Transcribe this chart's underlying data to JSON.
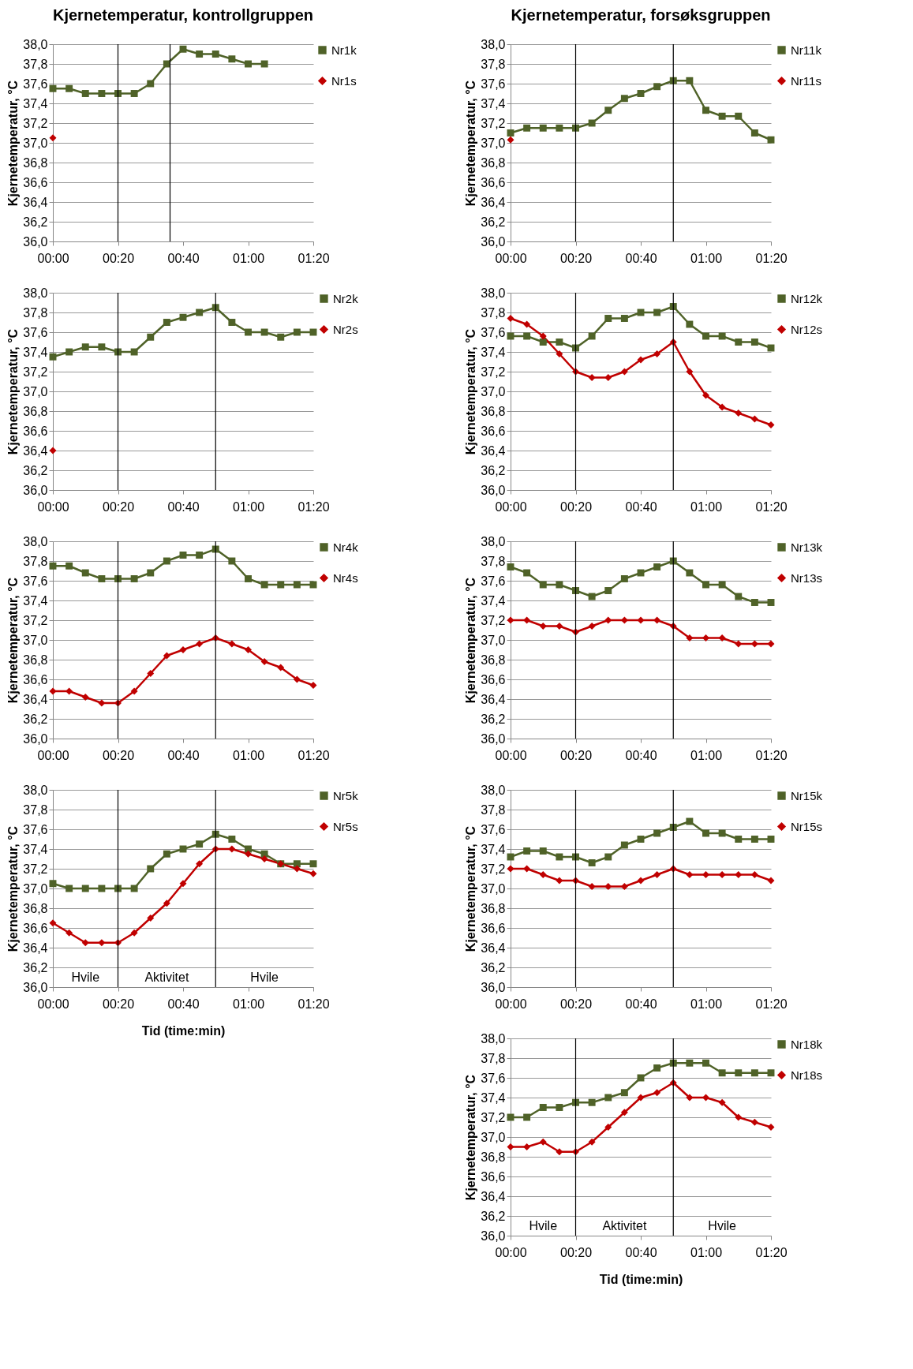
{
  "chart_data": [
    {
      "type": "line",
      "title": "Kjernetemperatur, kontrollgruppen",
      "ylabel": "Kjernetemperatur, °C",
      "legend": "right",
      "grid": "y",
      "xlim": [
        0,
        80
      ],
      "xticks": [
        {
          "value": 0,
          "label": "00:00"
        },
        {
          "value": 20,
          "label": "00:20"
        },
        {
          "value": 40,
          "label": "00:40"
        },
        {
          "value": 60,
          "label": "01:00"
        },
        {
          "value": 80,
          "label": "01:20"
        }
      ],
      "ylim": [
        36,
        38
      ],
      "yticks": [
        {
          "value": 36,
          "label": "36,0"
        },
        {
          "value": 36.2,
          "label": "36,2"
        },
        {
          "value": 36.4,
          "label": "36,4"
        },
        {
          "value": 36.6,
          "label": "36,6"
        },
        {
          "value": 36.8,
          "label": "36,8"
        },
        {
          "value": 37,
          "label": "37,0"
        },
        {
          "value": 37.2,
          "label": "37,2"
        },
        {
          "value": 37.4,
          "label": "37,4"
        },
        {
          "value": 37.6,
          "label": "37,6"
        },
        {
          "value": 37.8,
          "label": "37,8"
        },
        {
          "value": 38,
          "label": "38,0"
        }
      ],
      "ref_lines": [
        {
          "axis": "x",
          "value": 20,
          "color": "#000000"
        },
        {
          "axis": "x",
          "value": 36,
          "color": "#000000"
        }
      ],
      "series": [
        {
          "name": "Nr1k",
          "color": "#4f6228",
          "marker": "square",
          "x": [
            0,
            5,
            10,
            15,
            20,
            25,
            30,
            35,
            40,
            45,
            50,
            55,
            60,
            65
          ],
          "values": [
            37.55,
            37.55,
            37.5,
            37.5,
            37.5,
            37.5,
            37.6,
            37.8,
            37.95,
            37.9,
            37.9,
            37.85,
            37.8,
            37.8
          ]
        },
        {
          "name": "Nr1s",
          "color": "#c00000",
          "marker": "diamond",
          "x": [
            0
          ],
          "values": [
            37.05
          ]
        }
      ]
    },
    {
      "type": "line",
      "ylabel": "Kjernetemperatur, °C",
      "legend": "right",
      "grid": "y",
      "xlim": [
        0,
        80
      ],
      "xticks": [
        {
          "value": 0,
          "label": "00:00"
        },
        {
          "value": 20,
          "label": "00:20"
        },
        {
          "value": 40,
          "label": "00:40"
        },
        {
          "value": 60,
          "label": "01:00"
        },
        {
          "value": 80,
          "label": "01:20"
        }
      ],
      "ylim": [
        36,
        38
      ],
      "yticks": [
        {
          "value": 36,
          "label": "36,0"
        },
        {
          "value": 36.2,
          "label": "36,2"
        },
        {
          "value": 36.4,
          "label": "36,4"
        },
        {
          "value": 36.6,
          "label": "36,6"
        },
        {
          "value": 36.8,
          "label": "36,8"
        },
        {
          "value": 37,
          "label": "37,0"
        },
        {
          "value": 37.2,
          "label": "37,2"
        },
        {
          "value": 37.4,
          "label": "37,4"
        },
        {
          "value": 37.6,
          "label": "37,6"
        },
        {
          "value": 37.8,
          "label": "37,8"
        },
        {
          "value": 38,
          "label": "38,0"
        }
      ],
      "ref_lines": [
        {
          "axis": "x",
          "value": 20,
          "color": "#000000"
        },
        {
          "axis": "x",
          "value": 50,
          "color": "#000000"
        }
      ],
      "series": [
        {
          "name": "Nr2k",
          "color": "#4f6228",
          "marker": "square",
          "x": [
            0,
            5,
            10,
            15,
            20,
            25,
            30,
            35,
            40,
            45,
            50,
            55,
            60,
            65,
            70,
            75,
            80
          ],
          "values": [
            37.35,
            37.4,
            37.45,
            37.45,
            37.4,
            37.4,
            37.55,
            37.7,
            37.75,
            37.8,
            37.85,
            37.7,
            37.6,
            37.6,
            37.55,
            37.6,
            37.6
          ]
        },
        {
          "name": "Nr2s",
          "color": "#c00000",
          "marker": "diamond",
          "x": [
            0
          ],
          "values": [
            36.4
          ]
        }
      ]
    },
    {
      "type": "line",
      "ylabel": "Kjernetemperatur, °C",
      "legend": "right",
      "grid": "y",
      "xlim": [
        0,
        80
      ],
      "xticks": [
        {
          "value": 0,
          "label": "00:00"
        },
        {
          "value": 20,
          "label": "00:20"
        },
        {
          "value": 40,
          "label": "00:40"
        },
        {
          "value": 60,
          "label": "01:00"
        },
        {
          "value": 80,
          "label": "01:20"
        }
      ],
      "ylim": [
        36,
        38
      ],
      "yticks": [
        {
          "value": 36,
          "label": "36,0"
        },
        {
          "value": 36.2,
          "label": "36,2"
        },
        {
          "value": 36.4,
          "label": "36,4"
        },
        {
          "value": 36.6,
          "label": "36,6"
        },
        {
          "value": 36.8,
          "label": "36,8"
        },
        {
          "value": 37,
          "label": "37,0"
        },
        {
          "value": 37.2,
          "label": "37,2"
        },
        {
          "value": 37.4,
          "label": "37,4"
        },
        {
          "value": 37.6,
          "label": "37,6"
        },
        {
          "value": 37.8,
          "label": "37,8"
        },
        {
          "value": 38,
          "label": "38,0"
        }
      ],
      "ref_lines": [
        {
          "axis": "x",
          "value": 20,
          "color": "#000000"
        },
        {
          "axis": "x",
          "value": 50,
          "color": "#000000"
        }
      ],
      "series": [
        {
          "name": "Nr4k",
          "color": "#4f6228",
          "marker": "square",
          "x": [
            0,
            5,
            10,
            15,
            20,
            25,
            30,
            35,
            40,
            45,
            50,
            55,
            60,
            65,
            70,
            75,
            80
          ],
          "values": [
            37.75,
            37.75,
            37.68,
            37.62,
            37.62,
            37.62,
            37.68,
            37.8,
            37.86,
            37.86,
            37.92,
            37.8,
            37.62,
            37.56,
            37.56,
            37.56,
            37.56
          ]
        },
        {
          "name": "Nr4s",
          "color": "#c00000",
          "marker": "diamond",
          "x": [
            0,
            5,
            10,
            15,
            20,
            25,
            30,
            35,
            40,
            45,
            50,
            55,
            60,
            65,
            70,
            75,
            80
          ],
          "values": [
            36.48,
            36.48,
            36.42,
            36.36,
            36.36,
            36.48,
            36.66,
            36.84,
            36.9,
            36.96,
            37.02,
            36.96,
            36.9,
            36.78,
            36.72,
            36.6,
            36.54
          ]
        }
      ]
    },
    {
      "type": "line",
      "ylabel": "Kjernetemperatur, °C",
      "xlabel": "Tid (time:min)",
      "legend": "right",
      "grid": "y",
      "xlim": [
        0,
        80
      ],
      "xticks": [
        {
          "value": 0,
          "label": "00:00"
        },
        {
          "value": 20,
          "label": "00:20"
        },
        {
          "value": 40,
          "label": "00:40"
        },
        {
          "value": 60,
          "label": "01:00"
        },
        {
          "value": 80,
          "label": "01:20"
        }
      ],
      "ylim": [
        36,
        38
      ],
      "yticks": [
        {
          "value": 36,
          "label": "36,0"
        },
        {
          "value": 36.2,
          "label": "36,2"
        },
        {
          "value": 36.4,
          "label": "36,4"
        },
        {
          "value": 36.6,
          "label": "36,6"
        },
        {
          "value": 36.8,
          "label": "36,8"
        },
        {
          "value": 37,
          "label": "37,0"
        },
        {
          "value": 37.2,
          "label": "37,2"
        },
        {
          "value": 37.4,
          "label": "37,4"
        },
        {
          "value": 37.6,
          "label": "37,6"
        },
        {
          "value": 37.8,
          "label": "37,8"
        },
        {
          "value": 38,
          "label": "38,0"
        }
      ],
      "ref_lines": [
        {
          "axis": "x",
          "value": 20,
          "color": "#000000"
        },
        {
          "axis": "x",
          "value": 50,
          "color": "#000000"
        }
      ],
      "annotations": [
        "Hvile",
        "Aktivitet",
        "Hvile"
      ],
      "series": [
        {
          "name": "Nr5k",
          "color": "#4f6228",
          "marker": "square",
          "x": [
            0,
            5,
            10,
            15,
            20,
            25,
            30,
            35,
            40,
            45,
            50,
            55,
            60,
            65,
            70,
            75,
            80
          ],
          "values": [
            37.05,
            37.0,
            37.0,
            37.0,
            37.0,
            37.0,
            37.2,
            37.35,
            37.4,
            37.45,
            37.55,
            37.5,
            37.4,
            37.35,
            37.25,
            37.25,
            37.25
          ]
        },
        {
          "name": "Nr5s",
          "color": "#c00000",
          "marker": "diamond",
          "x": [
            0,
            5,
            10,
            15,
            20,
            25,
            30,
            35,
            40,
            45,
            50,
            55,
            60,
            65,
            70,
            75,
            80
          ],
          "values": [
            36.65,
            36.55,
            36.45,
            36.45,
            36.45,
            36.55,
            36.7,
            36.85,
            37.05,
            37.25,
            37.4,
            37.4,
            37.35,
            37.3,
            37.25,
            37.2,
            37.15
          ]
        }
      ]
    },
    {
      "type": "line",
      "title": "Kjernetemperatur, forsøksgruppen",
      "ylabel": "Kjernetemperatur, °C",
      "legend": "right",
      "grid": "y",
      "xlim": [
        0,
        80
      ],
      "xticks": [
        {
          "value": 0,
          "label": "00:00"
        },
        {
          "value": 20,
          "label": "00:20"
        },
        {
          "value": 40,
          "label": "00:40"
        },
        {
          "value": 60,
          "label": "01:00"
        },
        {
          "value": 80,
          "label": "01:20"
        }
      ],
      "ylim": [
        36,
        38
      ],
      "yticks": [
        {
          "value": 36,
          "label": "36,0"
        },
        {
          "value": 36.2,
          "label": "36,2"
        },
        {
          "value": 36.4,
          "label": "36,4"
        },
        {
          "value": 36.6,
          "label": "36,6"
        },
        {
          "value": 36.8,
          "label": "36,8"
        },
        {
          "value": 37,
          "label": "37,0"
        },
        {
          "value": 37.2,
          "label": "37,2"
        },
        {
          "value": 37.4,
          "label": "37,4"
        },
        {
          "value": 37.6,
          "label": "37,6"
        },
        {
          "value": 37.8,
          "label": "37,8"
        },
        {
          "value": 38,
          "label": "38,0"
        }
      ],
      "ref_lines": [
        {
          "axis": "x",
          "value": 20,
          "color": "#000000"
        },
        {
          "axis": "x",
          "value": 50,
          "color": "#000000"
        }
      ],
      "series": [
        {
          "name": "Nr11k",
          "color": "#4f6228",
          "marker": "square",
          "x": [
            0,
            5,
            10,
            15,
            20,
            25,
            30,
            35,
            40,
            45,
            50,
            55,
            60,
            65,
            70,
            75,
            80
          ],
          "values": [
            37.1,
            37.15,
            37.15,
            37.15,
            37.15,
            37.2,
            37.33,
            37.45,
            37.5,
            37.57,
            37.63,
            37.63,
            37.33,
            37.27,
            37.27,
            37.1,
            37.03
          ]
        },
        {
          "name": "Nr11s",
          "color": "#c00000",
          "marker": "diamond",
          "x": [
            0
          ],
          "values": [
            37.03
          ]
        }
      ]
    },
    {
      "type": "line",
      "ylabel": "Kjernetemperatur, °C",
      "legend": "right",
      "grid": "y",
      "xlim": [
        0,
        80
      ],
      "xticks": [
        {
          "value": 0,
          "label": "00:00"
        },
        {
          "value": 20,
          "label": "00:20"
        },
        {
          "value": 40,
          "label": "00:40"
        },
        {
          "value": 60,
          "label": "01:00"
        },
        {
          "value": 80,
          "label": "01:20"
        }
      ],
      "ylim": [
        36,
        38
      ],
      "yticks": [
        {
          "value": 36,
          "label": "36,0"
        },
        {
          "value": 36.2,
          "label": "36,2"
        },
        {
          "value": 36.4,
          "label": "36,4"
        },
        {
          "value": 36.6,
          "label": "36,6"
        },
        {
          "value": 36.8,
          "label": "36,8"
        },
        {
          "value": 37,
          "label": "37,0"
        },
        {
          "value": 37.2,
          "label": "37,2"
        },
        {
          "value": 37.4,
          "label": "37,4"
        },
        {
          "value": 37.6,
          "label": "37,6"
        },
        {
          "value": 37.8,
          "label": "37,8"
        },
        {
          "value": 38,
          "label": "38,0"
        }
      ],
      "ref_lines": [
        {
          "axis": "x",
          "value": 20,
          "color": "#000000"
        },
        {
          "axis": "x",
          "value": 50,
          "color": "#000000"
        }
      ],
      "series": [
        {
          "name": "Nr12k",
          "color": "#4f6228",
          "marker": "square",
          "x": [
            0,
            5,
            10,
            15,
            20,
            25,
            30,
            35,
            40,
            45,
            50,
            55,
            60,
            65,
            70,
            75,
            80
          ],
          "values": [
            37.56,
            37.56,
            37.5,
            37.5,
            37.44,
            37.56,
            37.74,
            37.74,
            37.8,
            37.8,
            37.86,
            37.68,
            37.56,
            37.56,
            37.5,
            37.5,
            37.44
          ]
        },
        {
          "name": "Nr12s",
          "color": "#c00000",
          "marker": "diamond",
          "x": [
            0,
            5,
            10,
            15,
            20,
            25,
            30,
            35,
            40,
            45,
            50,
            55,
            60,
            65,
            70,
            75,
            80
          ],
          "values": [
            37.74,
            37.68,
            37.56,
            37.38,
            37.2,
            37.14,
            37.14,
            37.2,
            37.32,
            37.38,
            37.5,
            37.2,
            36.96,
            36.84,
            36.78,
            36.72,
            36.66
          ]
        }
      ]
    },
    {
      "type": "line",
      "ylabel": "Kjernetemperatur, °C",
      "legend": "right",
      "grid": "y",
      "xlim": [
        0,
        80
      ],
      "xticks": [
        {
          "value": 0,
          "label": "00:00"
        },
        {
          "value": 20,
          "label": "00:20"
        },
        {
          "value": 40,
          "label": "00:40"
        },
        {
          "value": 60,
          "label": "01:00"
        },
        {
          "value": 80,
          "label": "01:20"
        }
      ],
      "ylim": [
        36,
        38
      ],
      "yticks": [
        {
          "value": 36,
          "label": "36,0"
        },
        {
          "value": 36.2,
          "label": "36,2"
        },
        {
          "value": 36.4,
          "label": "36,4"
        },
        {
          "value": 36.6,
          "label": "36,6"
        },
        {
          "value": 36.8,
          "label": "36,8"
        },
        {
          "value": 37,
          "label": "37,0"
        },
        {
          "value": 37.2,
          "label": "37,2"
        },
        {
          "value": 37.4,
          "label": "37,4"
        },
        {
          "value": 37.6,
          "label": "37,6"
        },
        {
          "value": 37.8,
          "label": "37,8"
        },
        {
          "value": 38,
          "label": "38,0"
        }
      ],
      "ref_lines": [
        {
          "axis": "x",
          "value": 20,
          "color": "#000000"
        },
        {
          "axis": "x",
          "value": 50,
          "color": "#000000"
        }
      ],
      "series": [
        {
          "name": "Nr13k",
          "color": "#4f6228",
          "marker": "square",
          "x": [
            0,
            5,
            10,
            15,
            20,
            25,
            30,
            35,
            40,
            45,
            50,
            55,
            60,
            65,
            70,
            75,
            80
          ],
          "values": [
            37.74,
            37.68,
            37.56,
            37.56,
            37.5,
            37.44,
            37.5,
            37.62,
            37.68,
            37.74,
            37.8,
            37.68,
            37.56,
            37.56,
            37.44,
            37.38,
            37.38
          ]
        },
        {
          "name": "Nr13s",
          "color": "#c00000",
          "marker": "diamond",
          "x": [
            0,
            5,
            10,
            15,
            20,
            25,
            30,
            35,
            40,
            45,
            50,
            55,
            60,
            65,
            70,
            75,
            80
          ],
          "values": [
            37.2,
            37.2,
            37.14,
            37.14,
            37.08,
            37.14,
            37.2,
            37.2,
            37.2,
            37.2,
            37.14,
            37.02,
            37.02,
            37.02,
            36.96,
            36.96,
            36.96
          ]
        }
      ]
    },
    {
      "type": "line",
      "ylabel": "Kjernetemperatur, °C",
      "legend": "right",
      "grid": "y",
      "xlim": [
        0,
        80
      ],
      "xticks": [
        {
          "value": 0,
          "label": "00:00"
        },
        {
          "value": 20,
          "label": "00:20"
        },
        {
          "value": 40,
          "label": "00:40"
        },
        {
          "value": 60,
          "label": "01:00"
        },
        {
          "value": 80,
          "label": "01:20"
        }
      ],
      "ylim": [
        36,
        38
      ],
      "yticks": [
        {
          "value": 36,
          "label": "36,0"
        },
        {
          "value": 36.2,
          "label": "36,2"
        },
        {
          "value": 36.4,
          "label": "36,4"
        },
        {
          "value": 36.6,
          "label": "36,6"
        },
        {
          "value": 36.8,
          "label": "36,8"
        },
        {
          "value": 37,
          "label": "37,0"
        },
        {
          "value": 37.2,
          "label": "37,2"
        },
        {
          "value": 37.4,
          "label": "37,4"
        },
        {
          "value": 37.6,
          "label": "37,6"
        },
        {
          "value": 37.8,
          "label": "37,8"
        },
        {
          "value": 38,
          "label": "38,0"
        }
      ],
      "ref_lines": [
        {
          "axis": "x",
          "value": 20,
          "color": "#000000"
        },
        {
          "axis": "x",
          "value": 50,
          "color": "#000000"
        }
      ],
      "series": [
        {
          "name": "Nr15k",
          "color": "#4f6228",
          "marker": "square",
          "x": [
            0,
            5,
            10,
            15,
            20,
            25,
            30,
            35,
            40,
            45,
            50,
            55,
            60,
            65,
            70,
            75,
            80
          ],
          "values": [
            37.32,
            37.38,
            37.38,
            37.32,
            37.32,
            37.26,
            37.32,
            37.44,
            37.5,
            37.56,
            37.62,
            37.68,
            37.56,
            37.56,
            37.5,
            37.5,
            37.5
          ]
        },
        {
          "name": "Nr15s",
          "color": "#c00000",
          "marker": "diamond",
          "x": [
            0,
            5,
            10,
            15,
            20,
            25,
            30,
            35,
            40,
            45,
            50,
            55,
            60,
            65,
            70,
            75,
            80
          ],
          "values": [
            37.2,
            37.2,
            37.14,
            37.08,
            37.08,
            37.02,
            37.02,
            37.02,
            37.08,
            37.14,
            37.2,
            37.14,
            37.14,
            37.14,
            37.14,
            37.14,
            37.08
          ]
        }
      ]
    },
    {
      "type": "line",
      "ylabel": "Kjernetemperatur, °C",
      "xlabel": "Tid (time:min)",
      "legend": "right",
      "grid": "y",
      "xlim": [
        0,
        80
      ],
      "xticks": [
        {
          "value": 0,
          "label": "00:00"
        },
        {
          "value": 20,
          "label": "00:20"
        },
        {
          "value": 40,
          "label": "00:40"
        },
        {
          "value": 60,
          "label": "01:00"
        },
        {
          "value": 80,
          "label": "01:20"
        }
      ],
      "ylim": [
        36,
        38
      ],
      "yticks": [
        {
          "value": 36,
          "label": "36,0"
        },
        {
          "value": 36.2,
          "label": "36,2"
        },
        {
          "value": 36.4,
          "label": "36,4"
        },
        {
          "value": 36.6,
          "label": "36,6"
        },
        {
          "value": 36.8,
          "label": "36,8"
        },
        {
          "value": 37,
          "label": "37,0"
        },
        {
          "value": 37.2,
          "label": "37,2"
        },
        {
          "value": 37.4,
          "label": "37,4"
        },
        {
          "value": 37.6,
          "label": "37,6"
        },
        {
          "value": 37.8,
          "label": "37,8"
        },
        {
          "value": 38,
          "label": "38,0"
        }
      ],
      "ref_lines": [
        {
          "axis": "x",
          "value": 20,
          "color": "#000000"
        },
        {
          "axis": "x",
          "value": 50,
          "color": "#000000"
        }
      ],
      "annotations": [
        "Hvile",
        "Aktivitet",
        "Hvile"
      ],
      "series": [
        {
          "name": "Nr18k",
          "color": "#4f6228",
          "marker": "square",
          "x": [
            0,
            5,
            10,
            15,
            20,
            25,
            30,
            35,
            40,
            45,
            50,
            55,
            60,
            65,
            70,
            75,
            80
          ],
          "values": [
            37.2,
            37.2,
            37.3,
            37.3,
            37.35,
            37.35,
            37.4,
            37.45,
            37.6,
            37.7,
            37.75,
            37.75,
            37.75,
            37.65,
            37.65,
            37.65,
            37.65
          ]
        },
        {
          "name": "Nr18s",
          "color": "#c00000",
          "marker": "diamond",
          "x": [
            0,
            5,
            10,
            15,
            20,
            25,
            30,
            35,
            40,
            45,
            50,
            55,
            60,
            65,
            70,
            75,
            80
          ],
          "values": [
            36.9,
            36.9,
            36.95,
            36.85,
            36.85,
            36.95,
            37.1,
            37.25,
            37.4,
            37.45,
            37.55,
            37.4,
            37.4,
            37.35,
            37.2,
            37.15,
            37.1
          ]
        }
      ]
    }
  ]
}
